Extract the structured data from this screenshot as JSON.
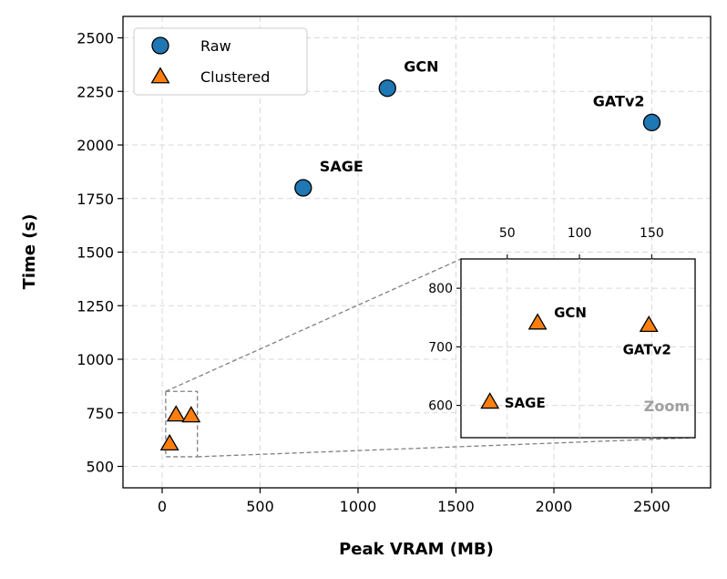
{
  "chart_data": {
    "type": "scatter",
    "title": "",
    "xlabel": "Peak VRAM (MB)",
    "ylabel": "Time (s)",
    "xlim": [
      -200,
      2800
    ],
    "ylim": [
      400,
      2600
    ],
    "xticks": [
      0,
      500,
      1000,
      1500,
      2000,
      2500
    ],
    "yticks": [
      500,
      750,
      1000,
      1250,
      1500,
      1750,
      2000,
      2250,
      2500
    ],
    "grid": true,
    "legend_position": "top-left",
    "series": [
      {
        "name": "Raw",
        "marker": "circle",
        "color": "#1f77b4",
        "points": [
          {
            "label": "SAGE",
            "x": 720,
            "y": 1800
          },
          {
            "label": "GCN",
            "x": 1150,
            "y": 2265
          },
          {
            "label": "GATv2",
            "x": 2500,
            "y": 2105
          }
        ]
      },
      {
        "name": "Clustered",
        "marker": "triangle",
        "color": "#ff7f0e",
        "points": [
          {
            "label": "SAGE",
            "x": 38,
            "y": 606
          },
          {
            "label": "GCN",
            "x": 71,
            "y": 741
          },
          {
            "label": "GATv2",
            "x": 148,
            "y": 737
          }
        ]
      }
    ],
    "inset": {
      "label": "Zoom",
      "xlim": [
        18,
        180
      ],
      "ylim": [
        545,
        850
      ],
      "xticks": [
        50,
        100,
        150
      ],
      "yticks": [
        600,
        700,
        800
      ]
    }
  }
}
